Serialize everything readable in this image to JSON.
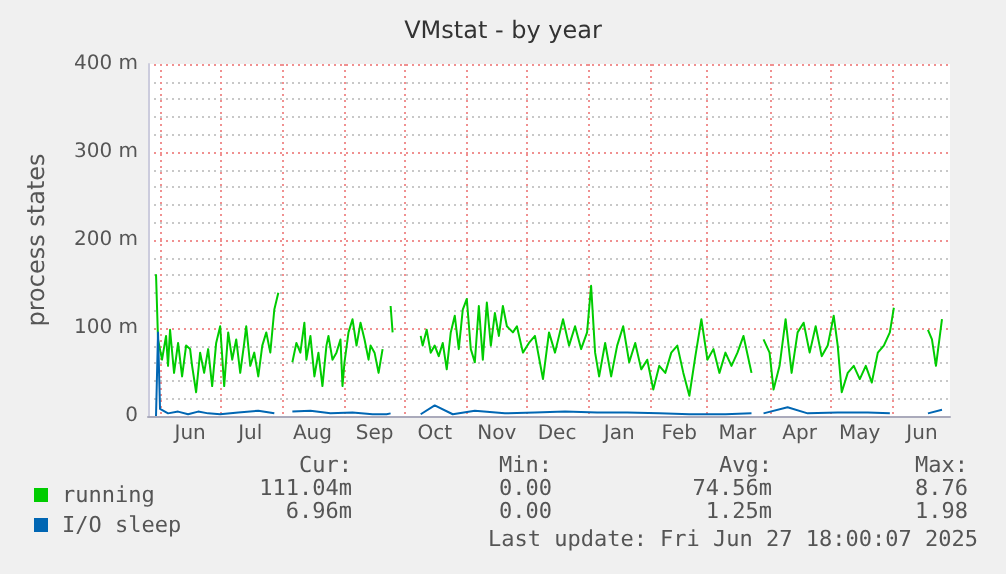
{
  "chart_data": {
    "type": "line",
    "title": "VMstat - by year",
    "ylabel": "process states",
    "xlim": [
      "2024-05-26",
      "2025-06-30"
    ],
    "xticks": [
      {
        "value": "2024-06-01",
        "label": null
      },
      {
        "value": "2024-06-16",
        "label": "Jun"
      },
      {
        "value": "2024-07-01",
        "label": null
      },
      {
        "value": "2024-07-16",
        "label": "Jul"
      },
      {
        "value": "2024-08-01",
        "label": null
      },
      {
        "value": "2024-08-16",
        "label": "Aug"
      },
      {
        "value": "2024-09-01",
        "label": null
      },
      {
        "value": "2024-09-16",
        "label": "Sep"
      },
      {
        "value": "2024-10-01",
        "label": null
      },
      {
        "value": "2024-10-16",
        "label": "Oct"
      },
      {
        "value": "2024-11-01",
        "label": null
      },
      {
        "value": "2024-11-16",
        "label": "Nov"
      },
      {
        "value": "2024-12-01",
        "label": null
      },
      {
        "value": "2024-12-16",
        "label": "Dec"
      },
      {
        "value": "2025-01-01",
        "label": null
      },
      {
        "value": "2025-01-16",
        "label": "Jan"
      },
      {
        "value": "2025-02-01",
        "label": null
      },
      {
        "value": "2025-02-15",
        "label": "Feb"
      },
      {
        "value": "2025-03-01",
        "label": null
      },
      {
        "value": "2025-03-16",
        "label": "Mar"
      },
      {
        "value": "2025-04-01",
        "label": null
      },
      {
        "value": "2025-04-16",
        "label": "Apr"
      },
      {
        "value": "2025-05-01",
        "label": null
      },
      {
        "value": "2025-05-16",
        "label": "May"
      },
      {
        "value": "2025-06-01",
        "label": null
      },
      {
        "value": "2025-06-16",
        "label": "Jun"
      }
    ],
    "ylim": [
      0,
      400
    ],
    "yticks": [
      {
        "value": 0,
        "label": "0"
      },
      {
        "value": 100,
        "label": "100 m"
      },
      {
        "value": 200,
        "label": "200 m"
      },
      {
        "value": 300,
        "label": "300 m"
      },
      {
        "value": 400,
        "label": "400 m"
      }
    ],
    "grid": true,
    "legend": "bottom left",
    "marker": "none",
    "series": [
      {
        "name": "running",
        "color": "#00cc00",
        "x": [
          "2024-05-30",
          "2024-05-31",
          "2024-06-02",
          "2024-06-04",
          "2024-06-05",
          "2024-06-06",
          "2024-06-08",
          "2024-06-10",
          "2024-06-12",
          "2024-06-14",
          "2024-06-16",
          "2024-06-17",
          "2024-06-19",
          "2024-06-21",
          "2024-06-23",
          "2024-06-25",
          "2024-06-27",
          "2024-06-29",
          "2024-07-01",
          "2024-07-03",
          "2024-07-05",
          "2024-07-07",
          "2024-07-09",
          "2024-07-11",
          "2024-07-13",
          "2024-07-14",
          "2024-07-16",
          "2024-07-18",
          "2024-07-20",
          "2024-07-22",
          "2024-07-24",
          "2024-07-26",
          "2024-07-28",
          "2024-07-30",
          "2024-08-03",
          "2024-08-06",
          "2024-08-08",
          "2024-08-10",
          "2024-08-12",
          "2024-08-13",
          "2024-08-15",
          "2024-08-17",
          "2024-08-19",
          "2024-08-21",
          "2024-08-23",
          "2024-08-24",
          "2024-08-26",
          "2024-08-28",
          "2024-08-30",
          "2024-08-31",
          "2024-09-01",
          "2024-09-03",
          "2024-09-05",
          "2024-09-07",
          "2024-09-09",
          "2024-09-11",
          "2024-09-13",
          "2024-09-14",
          "2024-09-16",
          "2024-09-18",
          "2024-09-20",
          "2024-09-22",
          "2024-09-24",
          "2024-09-25",
          "2024-10-01",
          "2024-10-09",
          "2024-10-10",
          "2024-10-12",
          "2024-10-14",
          "2024-10-16",
          "2024-10-18",
          "2024-10-20",
          "2024-10-22",
          "2024-10-24",
          "2024-10-26",
          "2024-10-28",
          "2024-10-30",
          "2024-11-01",
          "2024-11-03",
          "2024-11-05",
          "2024-11-07",
          "2024-11-09",
          "2024-11-11",
          "2024-11-13",
          "2024-11-15",
          "2024-11-17",
          "2024-11-19",
          "2024-11-21",
          "2024-11-24",
          "2024-11-26",
          "2024-11-29",
          "2024-12-02",
          "2024-12-05",
          "2024-12-09",
          "2024-12-12",
          "2024-12-15",
          "2024-12-19",
          "2024-12-22",
          "2024-12-25",
          "2024-12-28",
          "2024-12-31",
          "2025-01-02",
          "2025-01-04",
          "2025-01-06",
          "2025-01-09",
          "2025-01-12",
          "2025-01-15",
          "2025-01-18",
          "2025-01-21",
          "2025-01-24",
          "2025-01-27",
          "2025-01-30",
          "2025-02-02",
          "2025-02-05",
          "2025-02-08",
          "2025-02-11",
          "2025-02-14",
          "2025-02-17",
          "2025-02-20",
          "2025-02-23",
          "2025-02-26",
          "2025-03-01",
          "2025-03-04",
          "2025-03-07",
          "2025-03-10",
          "2025-03-13",
          "2025-03-16",
          "2025-03-19",
          "2025-03-23",
          "2025-03-26",
          "2025-03-29",
          "2025-04-01",
          "2025-04-03",
          "2025-04-06",
          "2025-04-09",
          "2025-04-12",
          "2025-04-15",
          "2025-04-18",
          "2025-04-21",
          "2025-04-24",
          "2025-04-27",
          "2025-04-30",
          "2025-05-03",
          "2025-05-05",
          "2025-05-07",
          "2025-05-10",
          "2025-05-13",
          "2025-05-16",
          "2025-05-19",
          "2025-05-22",
          "2025-05-25",
          "2025-05-28",
          "2025-05-31",
          "2025-06-02",
          "2025-06-10",
          "2025-06-19",
          "2025-06-21",
          "2025-06-23",
          "2025-06-26"
        ],
        "values": [
          161,
          87,
          64,
          91,
          57,
          98,
          49,
          83,
          45,
          80,
          76,
          57,
          27,
          72,
          49,
          76,
          34,
          83,
          102,
          34,
          95,
          64,
          87,
          49,
          83,
          102,
          57,
          72,
          45,
          80,
          95,
          72,
          121,
          140,
          null,
          61,
          83,
          72,
          106,
          64,
          91,
          45,
          72,
          34,
          80,
          91,
          64,
          72,
          87,
          34,
          61,
          95,
          110,
          80,
          106,
          87,
          64,
          80,
          72,
          49,
          76,
          null,
          125,
          95,
          null,
          91,
          80,
          98,
          72,
          80,
          68,
          83,
          53,
          95,
          114,
          76,
          121,
          133,
          76,
          61,
          125,
          64,
          129,
          80,
          117,
          91,
          125,
          102,
          95,
          102,
          72,
          83,
          91,
          42,
          95,
          72,
          110,
          80,
          102,
          76,
          95,
          148,
          72,
          45,
          83,
          45,
          80,
          102,
          61,
          83,
          53,
          64,
          30,
          57,
          49,
          72,
          80,
          49,
          23,
          68,
          110,
          64,
          76,
          49,
          72,
          57,
          72,
          91,
          49,
          null,
          87,
          72,
          30,
          57,
          110,
          49,
          95,
          106,
          72,
          102,
          68,
          80,
          114,
          80,
          27,
          49,
          57,
          42,
          57,
          38,
          72,
          80,
          95,
          123,
          null,
          98,
          87,
          57,
          110
        ]
      },
      {
        "name": "I/O sleep",
        "color": "#0066b3",
        "x": [
          "2024-05-30",
          "2024-05-31",
          "2024-06-01",
          "2024-06-05",
          "2024-06-10",
          "2024-06-15",
          "2024-06-20",
          "2024-06-25",
          "2024-07-01",
          "2024-07-10",
          "2024-07-20",
          "2024-07-28",
          "2024-08-03",
          "2024-08-06",
          "2024-08-15",
          "2024-08-25",
          "2024-09-05",
          "2024-09-15",
          "2024-09-22",
          "2024-09-24",
          "2024-10-01",
          "2024-10-09",
          "2024-10-16",
          "2024-10-25",
          "2024-11-05",
          "2024-11-20",
          "2024-12-05",
          "2024-12-20",
          "2025-01-05",
          "2025-01-20",
          "2025-02-05",
          "2025-02-20",
          "2025-03-10",
          "2025-03-23",
          "2025-03-26",
          "2025-03-29",
          "2025-04-10",
          "2025-04-20",
          "2025-05-05",
          "2025-05-20",
          "2025-05-31",
          "2025-06-10",
          "2025-06-19",
          "2025-06-26"
        ],
        "values": [
          0,
          95,
          8,
          3,
          5,
          2,
          5,
          3,
          2,
          4,
          6,
          3,
          null,
          5,
          6,
          3,
          4,
          2,
          2,
          3,
          null,
          2,
          12,
          2,
          6,
          3,
          4,
          5,
          4,
          4,
          3,
          2,
          2,
          3,
          null,
          3,
          10,
          3,
          4,
          4,
          3,
          null,
          3,
          7
        ]
      }
    ],
    "annotations": [
      "Cur:",
      "Min:",
      "Avg:",
      "Max:",
      "111.04m",
      "0.00",
      "74.56m",
      "8.76",
      "6.96m",
      "0.00",
      "1.25m",
      "1.98",
      "Last update: Fri Jun 27 18:00:07 2025"
    ]
  }
}
